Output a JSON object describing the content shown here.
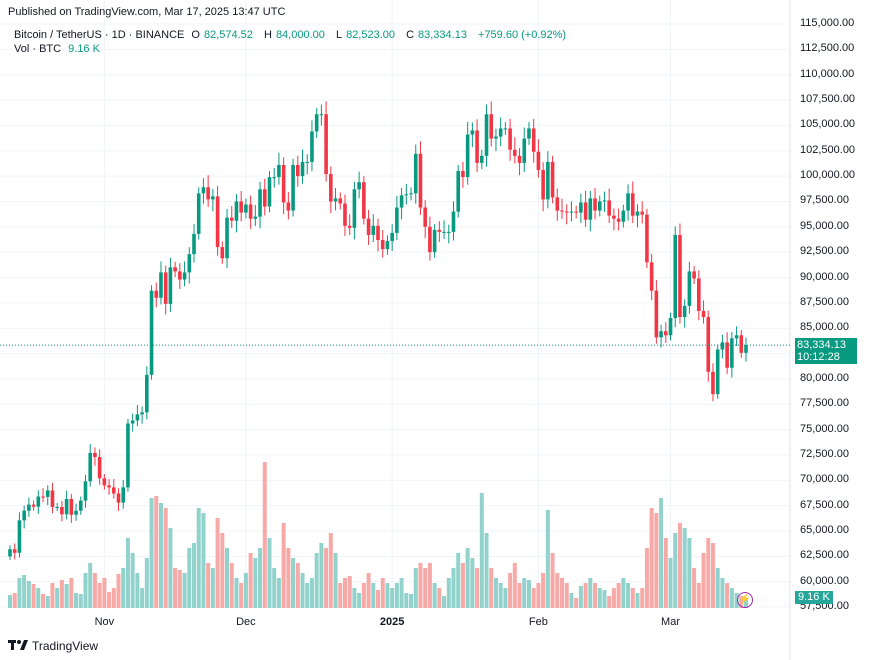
{
  "published": "Published on TradingView.com, Mar 17, 2025 13:47 UTC",
  "legend": {
    "symbol": "Bitcoin / TetherUS · 1D · BINANCE",
    "o_label": "O",
    "o": "82,574.52",
    "h_label": "H",
    "h": "84,000.00",
    "l_label": "L",
    "l": "82,523.00",
    "c_label": "C",
    "c": "83,334.13",
    "change": "+759.60 (+0.92%)",
    "vol_label": "Vol · BTC",
    "vol": "9.16 K"
  },
  "price_box": {
    "price": "83,334.13",
    "countdown": "10:12:28"
  },
  "vol_box": "9.16 K",
  "logo": "TradingView",
  "colors": {
    "up": "#089981",
    "down": "#f23645",
    "vol_up": "#92d2cc",
    "vol_down": "#f7a9a7"
  },
  "chart_data": {
    "type": "candlestick",
    "title": "Bitcoin / TetherUS · 1D · BINANCE",
    "start_date": "2024-10-12",
    "end_date": "2025-03-17",
    "x_ticks": [
      {
        "label": "Nov",
        "index": 20,
        "bold": false
      },
      {
        "label": "Dec",
        "index": 50,
        "bold": false
      },
      {
        "label": "2025",
        "index": 81,
        "bold": true
      },
      {
        "label": "Feb",
        "index": 112,
        "bold": false
      },
      {
        "label": "Mar",
        "index": 140,
        "bold": false
      }
    ],
    "y_ticks": [
      "115,000.00",
      "112,500.00",
      "110,000.00",
      "107,500.00",
      "105,000.00",
      "102,500.00",
      "100,000.00",
      "97,500.00",
      "95,000.00",
      "92,500.00",
      "90,000.00",
      "87,500.00",
      "85,000.00",
      "82,500.00",
      "80,000.00",
      "77,500.00",
      "75,000.00",
      "72,500.00",
      "70,000.00",
      "67,500.00",
      "65,000.00",
      "62,500.00",
      "60,000.00",
      "57,500.00"
    ],
    "ylim": [
      57500,
      115000
    ],
    "first_open": 62500,
    "close": [
      63200,
      62850,
      66050,
      67000,
      67600,
      67400,
      68400,
      68360,
      69000,
      67370,
      67370,
      66650,
      68160,
      66600,
      67000,
      68000,
      69900,
      72700,
      72300,
      70200,
      69500,
      69300,
      68700,
      67800,
      69300,
      75600,
      75900,
      76500,
      76700,
      80400,
      88700,
      88000,
      90500,
      87400,
      91000,
      90600,
      89800,
      90500,
      92300,
      94300,
      98300,
      98900,
      97700,
      98000,
      93000,
      91900,
      95900,
      95600,
      97500,
      96400,
      97200,
      95800,
      96000,
      98700,
      97000,
      99900,
      99900,
      101100,
      97400,
      96600,
      101100,
      100000,
      101400,
      101400,
      104400,
      106100,
      106100,
      100200,
      97500,
      97800,
      97300,
      95100,
      94900,
      98700,
      99400,
      95800,
      94200,
      95100,
      93700,
      92800,
      93600,
      94400,
      96900,
      98100,
      98200,
      98300,
      102200,
      96900,
      95000,
      92500,
      94700,
      94500,
      94500,
      94500,
      96500,
      100500,
      99900,
      104100,
      104500,
      101300,
      102000,
      106100,
      103700,
      103900,
      104700,
      104700,
      102600,
      102000,
      101300,
      103700,
      104700,
      102400,
      100600,
      97700,
      101400,
      97900,
      96600,
      96500,
      96400,
      96500,
      96400,
      97400,
      95700,
      97800,
      96600,
      97500,
      97600,
      96100,
      95800,
      95500,
      96600,
      98300,
      96100,
      96500,
      96200,
      91500,
      88700,
      84100,
      84700,
      84300,
      86000,
      94200,
      86100,
      87200,
      90600,
      89900,
      86700,
      86100,
      80700,
      78500,
      82900,
      83600,
      81100,
      84000,
      84300,
      82574.52,
      83334.13
    ],
    "volume_k": [
      13,
      15,
      30,
      33,
      27,
      24,
      20,
      14,
      12,
      25,
      20,
      28,
      24,
      30,
      15,
      14,
      35,
      45,
      35,
      25,
      30,
      16,
      20,
      34,
      40,
      70,
      55,
      35,
      20,
      50,
      110,
      112,
      105,
      100,
      80,
      40,
      38,
      35,
      60,
      65,
      100,
      95,
      45,
      40,
      90,
      75,
      60,
      45,
      30,
      25,
      35,
      55,
      50,
      60,
      146,
      70,
      40,
      30,
      85,
      60,
      50,
      45,
      35,
      25,
      30,
      55,
      65,
      60,
      75,
      55,
      25,
      30,
      32,
      20,
      15,
      25,
      35,
      25,
      18,
      30,
      25,
      20,
      25,
      30,
      15,
      14,
      40,
      45,
      40,
      45,
      25,
      20,
      12,
      30,
      40,
      55,
      45,
      60,
      50,
      40,
      115,
      75,
      40,
      30,
      25,
      20,
      35,
      45,
      25,
      30,
      28,
      20,
      25,
      35,
      98,
      55,
      35,
      30,
      25,
      15,
      10,
      22,
      25,
      30,
      25,
      20,
      18,
      12,
      20,
      25,
      30,
      25,
      20,
      15,
      20,
      60,
      100,
      95,
      110,
      70,
      50,
      75,
      85,
      80,
      70,
      40,
      25,
      55,
      70,
      65,
      40,
      30,
      25,
      20,
      15,
      12,
      9.16
    ]
  }
}
